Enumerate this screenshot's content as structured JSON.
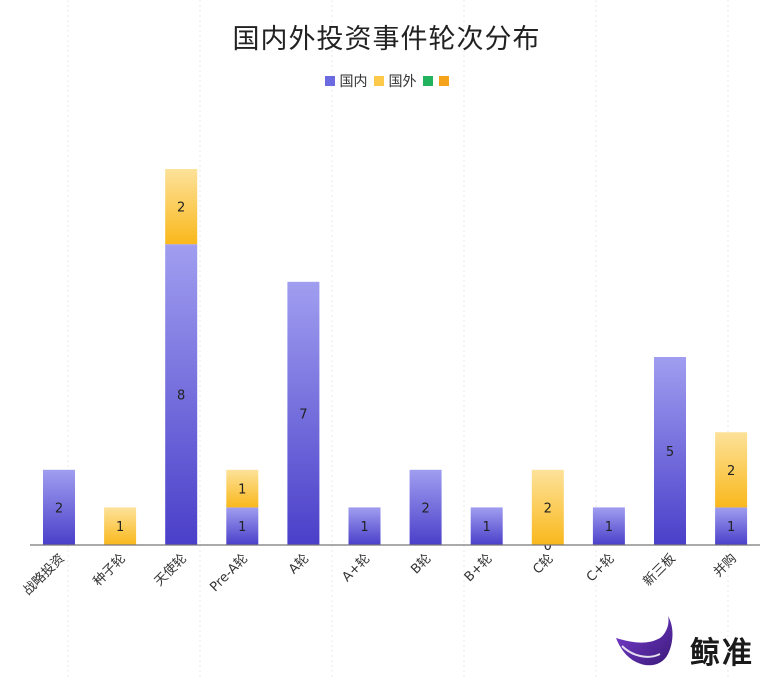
{
  "chart_data": {
    "type": "bar",
    "stacked": true,
    "title": "国内外投资事件轮次分布",
    "categories": [
      "战略投资",
      "种子轮",
      "天使轮",
      "Pre-A轮",
      "A轮",
      "A+轮",
      "B轮",
      "B+轮",
      "C轮",
      "C+轮",
      "新三板",
      "并购"
    ],
    "series": [
      {
        "name": "国内",
        "color": "#6c6ae0",
        "values": [
          2,
          0,
          8,
          1,
          7,
          1,
          2,
          1,
          0,
          1,
          5,
          1
        ],
        "labels": [
          "2",
          "",
          "8",
          "1",
          "7",
          "1",
          "2",
          "1",
          "0",
          "1",
          "5",
          "1"
        ]
      },
      {
        "name": "国外",
        "color": "#fcc94a",
        "values": [
          0,
          1,
          2,
          1,
          0,
          0,
          0,
          0,
          2,
          0,
          0,
          2
        ],
        "labels": [
          "",
          "1",
          "2",
          "1",
          "",
          "",
          "",
          "",
          "2",
          "",
          "",
          "2"
        ]
      },
      {
        "name": "",
        "color": "#22b35e",
        "values": [
          0,
          0,
          0,
          0,
          0,
          0,
          0,
          0,
          0,
          0,
          0,
          0
        ]
      },
      {
        "name": "",
        "color": "#f5a31a",
        "values": [
          0,
          0,
          0,
          0,
          0,
          0,
          0,
          0,
          0,
          0,
          0,
          0
        ]
      }
    ],
    "ylim": [
      0,
      10
    ],
    "grid": false,
    "legend_position": "top"
  },
  "watermark": {
    "brand": "鲸准",
    "icon": "whale-logo"
  }
}
